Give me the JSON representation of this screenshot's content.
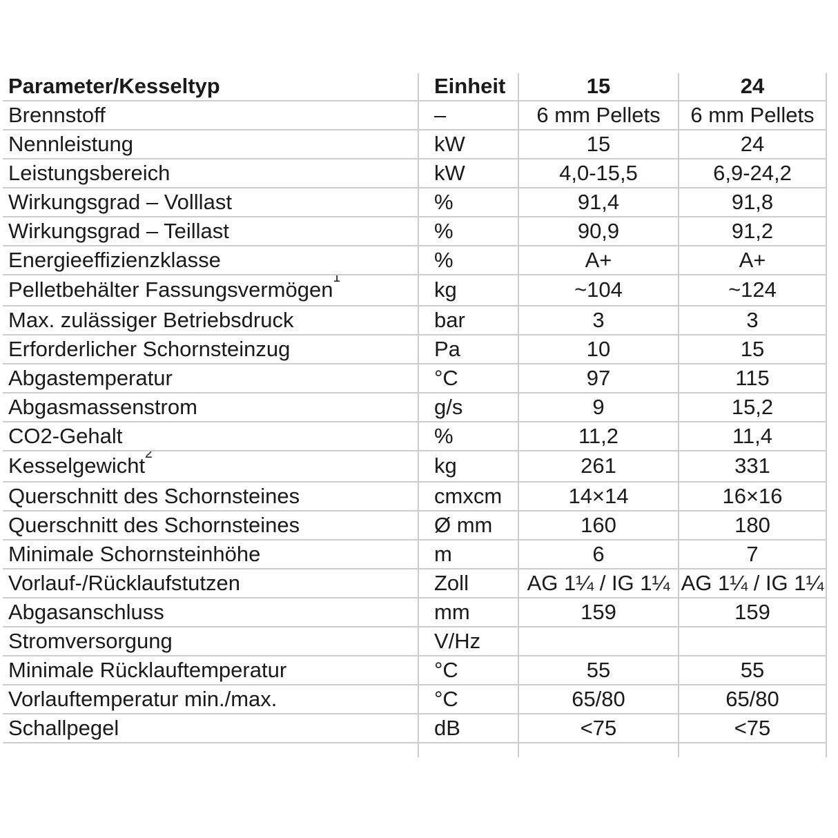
{
  "page": {
    "background": "#ffffff",
    "grid_color": "#cdcdcd",
    "text_color": "#1a1a1a"
  },
  "table": {
    "header": {
      "parameter": "Parameter/Kesseltyp",
      "unit": "Einheit",
      "model_15": "15",
      "model_24": "24"
    },
    "rows": [
      {
        "param": "Brennstoff",
        "unit": "–",
        "v15": "6 mm Pellets",
        "v24": "6 mm Pellets"
      },
      {
        "param": "Nennleistung",
        "unit": "kW",
        "v15": "15",
        "v24": "24"
      },
      {
        "param": "Leistungsbereich",
        "unit": "kW",
        "v15": "4,0-15,5",
        "v24": "6,9-24,2"
      },
      {
        "param": "Wirkungsgrad – Volllast",
        "unit": "%",
        "v15": "91,4",
        "v24": "91,8"
      },
      {
        "param": "Wirkungsgrad – Teillast",
        "unit": "%",
        "v15": "90,9",
        "v24": "91,2"
      },
      {
        "param": "Energieeffizienzklasse",
        "unit": "%",
        "v15": "A+",
        "v24": "A+"
      },
      {
        "param": "Pelletbehälter Fassungsvermögen",
        "sup": "1",
        "tall": true,
        "unit": "kg",
        "v15": "~104",
        "v24": "~124"
      },
      {
        "param": "Max. zulässiger Betriebsdruck",
        "unit": "bar",
        "v15": "3",
        "v24": "3"
      },
      {
        "param": "Erforderlicher Schornsteinzug",
        "unit": "Pa",
        "v15": "10",
        "v24": "15"
      },
      {
        "param": "Abgastemperatur",
        "unit": "°C",
        "v15": "97",
        "v24": "115"
      },
      {
        "param": "Abgasmassenstrom",
        "unit": "g/s",
        "v15": "9",
        "v24": "15,2"
      },
      {
        "param": "CO2-Gehalt",
        "unit": "%",
        "v15": "11,2",
        "v24": "11,4"
      },
      {
        "param": "Kesselgewicht",
        "sup": "2",
        "tall": true,
        "unit": "kg",
        "v15": "261",
        "v24": "331"
      },
      {
        "param": "Querschnitt des Schornsteines",
        "unit": "cmxcm",
        "v15": "14×14",
        "v24": "16×16"
      },
      {
        "param": "Querschnitt des Schornsteines",
        "unit": "Ø mm",
        "v15": "160",
        "v24": "180"
      },
      {
        "param": "Minimale Schornsteinhöhe",
        "unit": "m",
        "v15": "6",
        "v24": "7"
      },
      {
        "param": "Vorlauf-/Rücklaufstutzen",
        "unit": "Zoll",
        "v15": "AG 1¼ / IG 1¼",
        "v24": "AG 1¼ / IG 1¼"
      },
      {
        "param": "Abgasanschluss",
        "unit": "mm",
        "v15": "159",
        "v24": "159"
      },
      {
        "param": "Stromversorgung",
        "unit": "V/Hz",
        "v15": "",
        "v24": ""
      },
      {
        "param": "Minimale Rücklauftemperatur",
        "unit": "°C",
        "v15": "55",
        "v24": "55"
      },
      {
        "param": "Vorlauftemperatur min./max.",
        "unit": "°C",
        "v15": "65/80",
        "v24": "65/80"
      },
      {
        "param": "Schallpegel",
        "unit": "dB",
        "v15": "<75",
        "v24": "<75"
      }
    ],
    "stub_row": true
  }
}
